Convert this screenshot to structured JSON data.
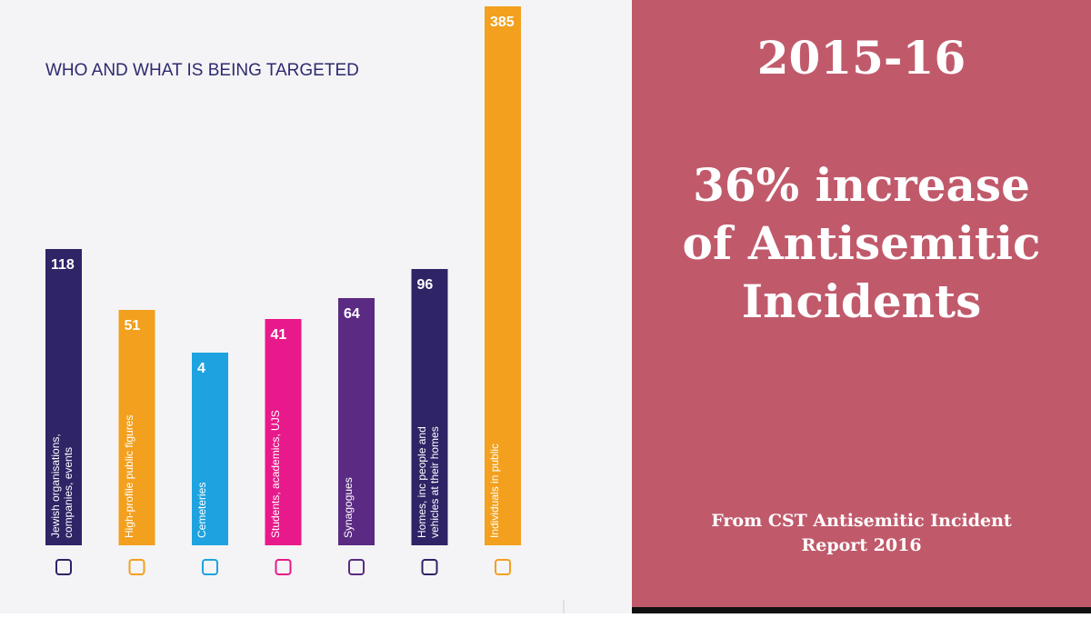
{
  "chart_data": {
    "type": "bar",
    "title": "WHO AND WHAT IS BEING TARGETED",
    "categories": [
      "Jewish organisations, companies, events",
      "High-profile public figures",
      "Cemeteries",
      "Students, academics, UJS",
      "Synagogues",
      "Homes, inc people and vehicles at their homes",
      "Individuals in public"
    ],
    "values": [
      118,
      51,
      4,
      41,
      64,
      96,
      385
    ],
    "colors": [
      "#2e2466",
      "#f2a01e",
      "#1ea3e0",
      "#e8198b",
      "#5b2a83",
      "#2e2466",
      "#f2a01e"
    ]
  },
  "panel": {
    "period": "2015-16",
    "headline": [
      "36% increase",
      "of Antisemitic",
      "Incidents"
    ],
    "source": [
      "From CST Antisemitic Incident",
      "Report 2016"
    ]
  }
}
